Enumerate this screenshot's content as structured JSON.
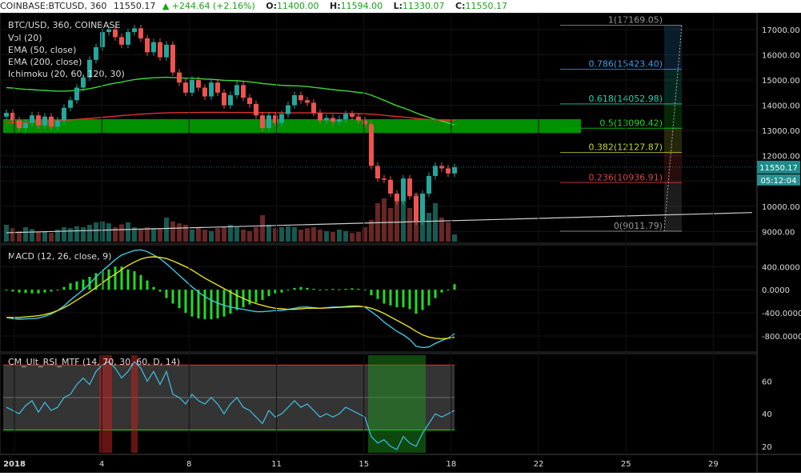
{
  "header": {
    "symbol": "COINBASE:BTCUSD, 360",
    "last": "11550.17",
    "change": "+244.64 (+2.16%)",
    "open_label": "O:",
    "open": "11400.00",
    "high_label": "H:",
    "high": "11594.00",
    "low_label": "L:",
    "low": "11330.07",
    "close_label": "C:",
    "close": "11550.17"
  },
  "colors": {
    "background": "#000000",
    "up_candle": "#26a69a",
    "down_candle": "#ef5350",
    "green_zone": "#00a000",
    "price_tag": "#1e8a8a",
    "macd_line": "#3fc8e0",
    "signal_line": "#e6e021",
    "macd_hist": "#22dd22",
    "rsi_line": "#3fb8d8"
  },
  "chart_data": [
    {
      "type": "candlestick",
      "title": "BTC/USD, 360, COINBASE",
      "legend": [
        "BTC/USD, 360, COINBASE",
        "Vol (20)",
        "EMA (50, close)",
        "EMA (200, close)",
        "Ichimoku (20, 60, 120, 30)"
      ],
      "x_ticks": [
        "2018",
        "4",
        "8",
        "11",
        "15",
        "18",
        "22",
        "25",
        "29"
      ],
      "y_ticks": [
        9000,
        10000,
        11000,
        12000,
        13000,
        14000,
        15000,
        16000,
        17000
      ],
      "ylim": [
        8600,
        17600
      ],
      "last_price_label": "11550.17",
      "countdown_label": "05:12:04",
      "fib_levels": [
        {
          "ratio": "1",
          "price": 17169.05,
          "label": "1(17169.05)",
          "color": "#9a9a9a"
        },
        {
          "ratio": "0.786",
          "price": 15423.4,
          "label": "0.786(15423.40)",
          "color": "#3aa0e8"
        },
        {
          "ratio": "0.618",
          "price": 14052.98,
          "label": "0.618(14052.98)",
          "color": "#29d3b0"
        },
        {
          "ratio": "0.5",
          "price": 13090.42,
          "label": "0.5(13090.42)",
          "color": "#22dd22"
        },
        {
          "ratio": "0.382",
          "price": 12127.87,
          "label": "0.382(12127.87)",
          "color": "#c8d830"
        },
        {
          "ratio": "0.236",
          "price": 10936.91,
          "label": "0.236(10936.91)",
          "color": "#e04040"
        },
        {
          "ratio": "0",
          "price": 9011.79,
          "label": "0(9011.79)",
          "color": "#9a9a9a"
        }
      ],
      "support_zone": [
        12900,
        13450
      ],
      "closes": [
        13700,
        13400,
        13100,
        13300,
        13600,
        13200,
        13550,
        13150,
        13400,
        13900,
        14200,
        14700,
        15100,
        15800,
        16300,
        16900,
        17000,
        16700,
        16400,
        16900,
        17050,
        16650,
        16100,
        16500,
        15900,
        16400,
        15300,
        14900,
        14500,
        15000,
        14700,
        14350,
        14900,
        14500,
        14000,
        14400,
        14800,
        14300,
        14050,
        13600,
        13100,
        13600,
        13300,
        13650,
        14000,
        14400,
        14200,
        14100,
        13700,
        13400,
        13500,
        13350,
        13450,
        13650,
        13550,
        13400,
        13250,
        11600,
        11100,
        11050,
        10500,
        10200,
        11100,
        10400,
        9400,
        10500,
        11200,
        11600,
        11500,
        11300,
        11550
      ],
      "volume": [
        0.35,
        0.28,
        0.22,
        0.3,
        0.26,
        0.2,
        0.22,
        0.18,
        0.25,
        0.3,
        0.28,
        0.32,
        0.3,
        0.35,
        0.4,
        0.42,
        0.38,
        0.3,
        0.36,
        0.4,
        0.3,
        0.25,
        0.3,
        0.28,
        0.26,
        0.5,
        0.42,
        0.38,
        0.35,
        0.25,
        0.3,
        0.25,
        0.22,
        0.28,
        0.3,
        0.35,
        0.3,
        0.25,
        0.22,
        0.3,
        0.55,
        0.35,
        0.28,
        0.3,
        0.32,
        0.3,
        0.25,
        0.28,
        0.3,
        0.25,
        0.22,
        0.2,
        0.25,
        0.22,
        0.18,
        0.2,
        0.3,
        0.45,
        0.8,
        0.9,
        0.7,
        0.85,
        0.95,
        0.7,
        1.0,
        0.75,
        0.6,
        0.8,
        0.5,
        0.4,
        0.15
      ],
      "ema50": [
        14700,
        14680,
        14650,
        14630,
        14620,
        14600,
        14590,
        14570,
        14560,
        14560,
        14570,
        14590,
        14620,
        14660,
        14710,
        14770,
        14830,
        14880,
        14920,
        14970,
        15020,
        15050,
        15070,
        15090,
        15100,
        15110,
        15100,
        15090,
        15070,
        15070,
        15060,
        15040,
        15030,
        15010,
        14990,
        14980,
        14970,
        14950,
        14930,
        14900,
        14860,
        14840,
        14810,
        14790,
        14780,
        14770,
        14760,
        14740,
        14710,
        14680,
        14650,
        14620,
        14590,
        14570,
        14540,
        14510,
        14480,
        14400,
        14300,
        14200,
        14090,
        13980,
        13900,
        13800,
        13700,
        13600,
        13520,
        13450,
        13380,
        13300,
        13220
      ],
      "ema200": [
        13300,
        13310,
        13320,
        13330,
        13345,
        13355,
        13365,
        13375,
        13390,
        13405,
        13420,
        13440,
        13460,
        13480,
        13500,
        13520,
        13545,
        13570,
        13590,
        13610,
        13630,
        13650,
        13665,
        13680,
        13690,
        13700,
        13705,
        13710,
        13712,
        13715,
        13716,
        13717,
        13718,
        13718,
        13717,
        13716,
        13716,
        13715,
        13714,
        13712,
        13708,
        13706,
        13703,
        13701,
        13700,
        13700,
        13700,
        13699,
        13697,
        13694,
        13690,
        13686,
        13682,
        13678,
        13674,
        13670,
        13665,
        13648,
        13628,
        13605,
        13580,
        13555,
        13533,
        13510,
        13480,
        13455,
        13440,
        13428,
        13415,
        13400,
        13390
      ],
      "trendline_price_start": 8950,
      "trendline_price_end": 9750
    },
    {
      "type": "line",
      "title": "MACD (12, 26, close, 9)",
      "y_ticks": [
        400,
        0,
        -400,
        -800
      ],
      "y_tick_labels": [
        "400.0000",
        "0.0000",
        "-400.0000",
        "-800.0000"
      ],
      "ylim": [
        -1050,
        750
      ],
      "macd": [
        -480,
        -500,
        -510,
        -505,
        -500,
        -490,
        -460,
        -420,
        -360,
        -280,
        -180,
        -90,
        0,
        100,
        220,
        330,
        420,
        520,
        600,
        640,
        680,
        690,
        660,
        600,
        540,
        450,
        350,
        250,
        150,
        50,
        -40,
        -120,
        -180,
        -230,
        -270,
        -300,
        -320,
        -340,
        -360,
        -380,
        -380,
        -370,
        -360,
        -360,
        -340,
        -320,
        -300,
        -300,
        -310,
        -320,
        -310,
        -300,
        -300,
        -290,
        -280,
        -280,
        -300,
        -380,
        -460,
        -560,
        -640,
        -720,
        -780,
        -860,
        -980,
        -1000,
        -990,
        -930,
        -880,
        -840,
        -760
      ],
      "signal": [
        -480,
        -480,
        -480,
        -470,
        -460,
        -450,
        -430,
        -400,
        -360,
        -310,
        -250,
        -180,
        -110,
        -40,
        40,
        120,
        200,
        270,
        350,
        420,
        480,
        530,
        560,
        570,
        560,
        540,
        500,
        450,
        400,
        340,
        270,
        200,
        140,
        80,
        20,
        -40,
        -100,
        -150,
        -200,
        -240,
        -270,
        -300,
        -320,
        -330,
        -340,
        -340,
        -330,
        -320,
        -320,
        -320,
        -315,
        -310,
        -305,
        -300,
        -295,
        -290,
        -295,
        -320,
        -360,
        -410,
        -470,
        -530,
        -590,
        -650,
        -720,
        -780,
        -820,
        -840,
        -850,
        -840,
        -820
      ]
    },
    {
      "type": "line",
      "title": "CM_Ult_RSI_MTF (14, 70, 30, 60, D, 14)",
      "y_ticks": [
        20,
        40,
        60
      ],
      "ylim": [
        16,
        76
      ],
      "overbought": 70,
      "oversold": 30,
      "midline": 50,
      "rsi": [
        44,
        42,
        40,
        45,
        48,
        41,
        47,
        42,
        44,
        50,
        52,
        58,
        62,
        58,
        66,
        70,
        72,
        68,
        62,
        66,
        72,
        68,
        60,
        66,
        58,
        66,
        52,
        50,
        46,
        52,
        48,
        46,
        50,
        46,
        40,
        46,
        50,
        44,
        42,
        38,
        34,
        42,
        38,
        40,
        44,
        48,
        44,
        46,
        42,
        38,
        40,
        38,
        40,
        44,
        42,
        40,
        38,
        26,
        22,
        24,
        20,
        18,
        26,
        22,
        20,
        28,
        34,
        40,
        38,
        40,
        42
      ]
    }
  ]
}
